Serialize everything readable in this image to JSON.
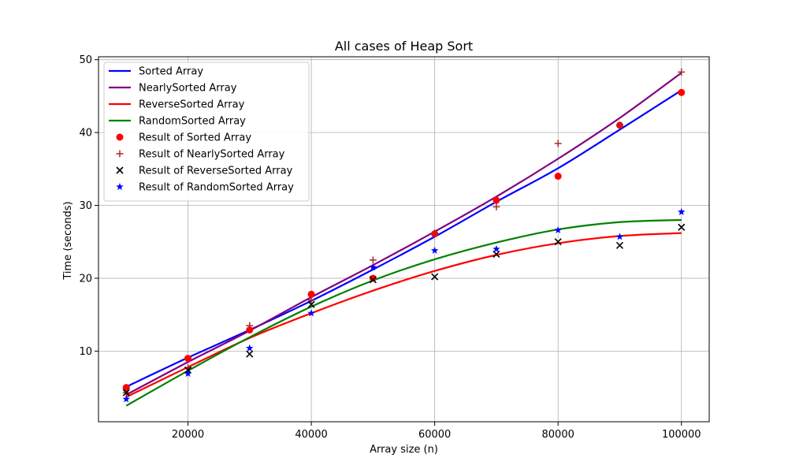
{
  "chart_data": {
    "type": "line",
    "title": "All cases of Heap Sort",
    "xlabel": "Array size (n)",
    "ylabel": "Time (seconds)",
    "xlim": [
      5500,
      104500
    ],
    "ylim": [
      0.3,
      50.4
    ],
    "xticks": [
      20000,
      40000,
      60000,
      80000,
      100000
    ],
    "xtick_labels": [
      "20000",
      "40000",
      "60000",
      "80000",
      "100000"
    ],
    "yticks": [
      10,
      20,
      30,
      40,
      50
    ],
    "ytick_labels": [
      "10",
      "20",
      "30",
      "40",
      "50"
    ],
    "grid": true,
    "legend_position": "top-left",
    "x": [
      10000,
      20000,
      30000,
      40000,
      50000,
      60000,
      70000,
      80000,
      90000,
      100000
    ],
    "fit_lines": [
      {
        "name": "Sorted Array",
        "color": "#0000ff",
        "x": [
          10000,
          20000,
          30000,
          40000,
          50000,
          60000,
          70000,
          80000,
          90000,
          100000
        ],
        "y": [
          5.1,
          9.1,
          12.9,
          16.9,
          21.2,
          25.7,
          30.5,
          35.1,
          40.4,
          45.8
        ]
      },
      {
        "name": "NearlySorted Array",
        "color": "#800080",
        "x": [
          10000,
          20000,
          30000,
          40000,
          50000,
          60000,
          70000,
          80000,
          90000,
          100000
        ],
        "y": [
          4.0,
          8.5,
          12.8,
          17.4,
          21.8,
          26.4,
          31.2,
          36.4,
          42.0,
          48.2
        ]
      },
      {
        "name": "ReverseSorted Array",
        "color": "#ff0000",
        "x": [
          10000,
          20000,
          30000,
          40000,
          50000,
          60000,
          70000,
          80000,
          90000,
          100000
        ],
        "y": [
          3.7,
          7.8,
          11.8,
          15.2,
          18.3,
          21.0,
          23.2,
          24.8,
          25.8,
          26.2
        ]
      },
      {
        "name": "RandomSorted Array",
        "color": "#008000",
        "x": [
          10000,
          20000,
          30000,
          40000,
          50000,
          60000,
          70000,
          80000,
          90000,
          100000
        ],
        "y": [
          2.5,
          7.3,
          11.9,
          16.1,
          19.7,
          22.6,
          24.9,
          26.7,
          27.7,
          28.0
        ]
      }
    ],
    "scatter_series": [
      {
        "name": "Result of Sorted Array",
        "marker": "circle",
        "color": "#ff0000",
        "x": [
          10000,
          20000,
          30000,
          40000,
          50000,
          60000,
          70000,
          80000,
          90000,
          100000
        ],
        "y": [
          5.0,
          9.0,
          12.9,
          17.8,
          20.0,
          26.1,
          30.7,
          34.0,
          41.0,
          45.5
        ]
      },
      {
        "name": "Result of NearlySorted Array",
        "marker": "plus",
        "color": "#a52a2a",
        "x": [
          10000,
          20000,
          30000,
          40000,
          50000,
          60000,
          70000,
          80000,
          90000,
          100000
        ],
        "y": [
          4.3,
          7.7,
          13.5,
          17.0,
          22.5,
          26.2,
          29.8,
          38.5,
          41.0,
          48.3
        ]
      },
      {
        "name": "Result of ReverseSorted Array",
        "marker": "x",
        "color": "#000000",
        "x": [
          10000,
          20000,
          30000,
          40000,
          50000,
          60000,
          70000,
          80000,
          90000,
          100000
        ],
        "y": [
          4.3,
          7.4,
          9.6,
          16.4,
          19.8,
          20.2,
          23.3,
          25.0,
          24.5,
          27.0
        ]
      },
      {
        "name": "Result of RandomSorted Array",
        "marker": "star",
        "color": "#0000ff",
        "x": [
          10000,
          20000,
          30000,
          40000,
          50000,
          60000,
          70000,
          80000,
          90000,
          100000
        ],
        "y": [
          3.4,
          6.9,
          10.4,
          15.2,
          21.5,
          23.8,
          24.0,
          26.6,
          25.7,
          29.1
        ]
      }
    ]
  }
}
